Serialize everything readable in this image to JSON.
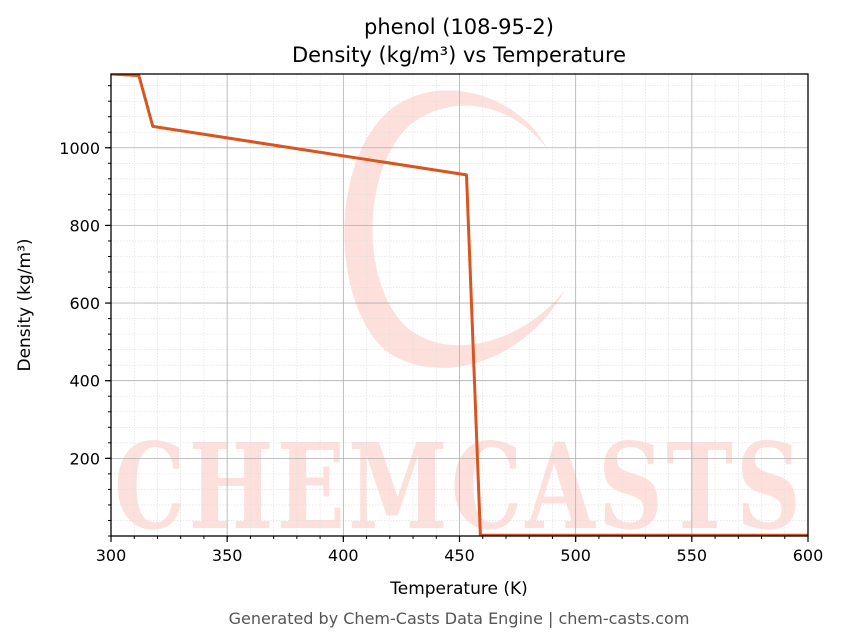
{
  "chart_data": {
    "type": "line",
    "title": "phenol (108-95-2)",
    "subtitle": "Density (kg/m³) vs Temperature",
    "xlabel": "Temperature (K)",
    "ylabel": "Density (kg/m³)",
    "xlim": [
      300,
      600
    ],
    "ylim": [
      0,
      1190
    ],
    "x_ticks": [
      300,
      350,
      400,
      450,
      500,
      550,
      600
    ],
    "y_ticks": [
      200,
      400,
      600,
      800,
      1000
    ],
    "grid": true,
    "minor_grid": true,
    "series": [
      {
        "color": "#d9541e",
        "x": [
          300,
          312,
          318,
          453,
          459,
          600
        ],
        "y": [
          1190,
          1186,
          1055,
          930,
          2,
          2
        ]
      }
    ]
  },
  "watermark": {
    "text": "CHEMCASTS",
    "color": "#fde0dc"
  },
  "footer": "Generated by Chem-Casts Data Engine | chem-casts.com"
}
